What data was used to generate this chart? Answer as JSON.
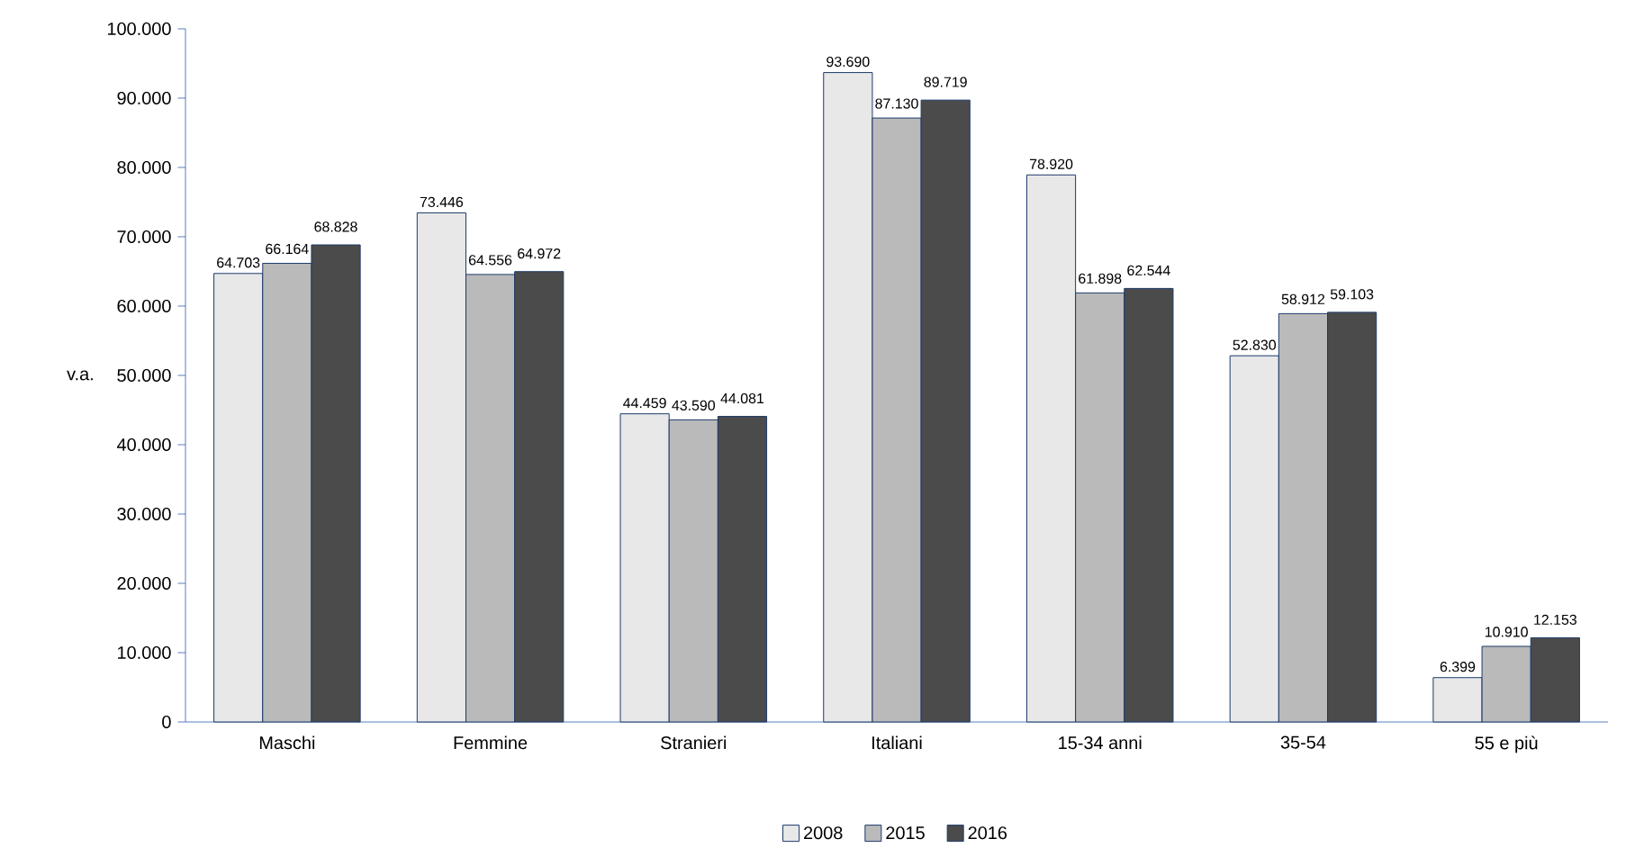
{
  "chart_data": {
    "type": "bar",
    "ylabel": "v.a.",
    "categories": [
      "Maschi",
      "Femmine",
      "Stranieri",
      "Italiani",
      "15-34 anni",
      "35-54",
      "55 e più"
    ],
    "series": [
      {
        "name": "2008",
        "color": "#e8e8e8",
        "values": [
          64703,
          73446,
          44459,
          93690,
          78920,
          52830,
          6399
        ],
        "value_labels": [
          "64.703",
          "73.446",
          "44.459",
          "93.690",
          "78.920",
          "52.830",
          "6.399"
        ]
      },
      {
        "name": "2015",
        "color": "#bababa",
        "values": [
          66164,
          64556,
          43590,
          87130,
          61898,
          58912,
          10910
        ],
        "value_labels": [
          "66.164",
          "64.556",
          "43.590",
          "87.130",
          "61.898",
          "58.912",
          "10.910"
        ]
      },
      {
        "name": "2016",
        "color": "#4b4b4b",
        "values": [
          68828,
          64972,
          44081,
          89719,
          62544,
          59103,
          12153
        ],
        "value_labels": [
          "68.828",
          "64.972",
          "44.081",
          "89.719",
          "62.544",
          "59.103",
          "12.153"
        ]
      }
    ],
    "ylim": [
      0,
      100000
    ],
    "yticks": [
      0,
      {
        "value": 10000,
        "label": "10.000"
      },
      {
        "value": 20000,
        "label": "20.000"
      },
      {
        "value": 30000,
        "label": "30.000"
      },
      {
        "value": 40000,
        "label": "40.000"
      },
      {
        "value": 50000,
        "label": "50.000"
      },
      {
        "value": 60000,
        "label": "60.000"
      },
      {
        "value": 70000,
        "label": "70.000"
      },
      {
        "value": 80000,
        "label": "80.000"
      },
      {
        "value": 90000,
        "label": "90.000"
      },
      {
        "value": 100000,
        "label": "100.000"
      }
    ],
    "grid": false,
    "legend": "bottom"
  }
}
